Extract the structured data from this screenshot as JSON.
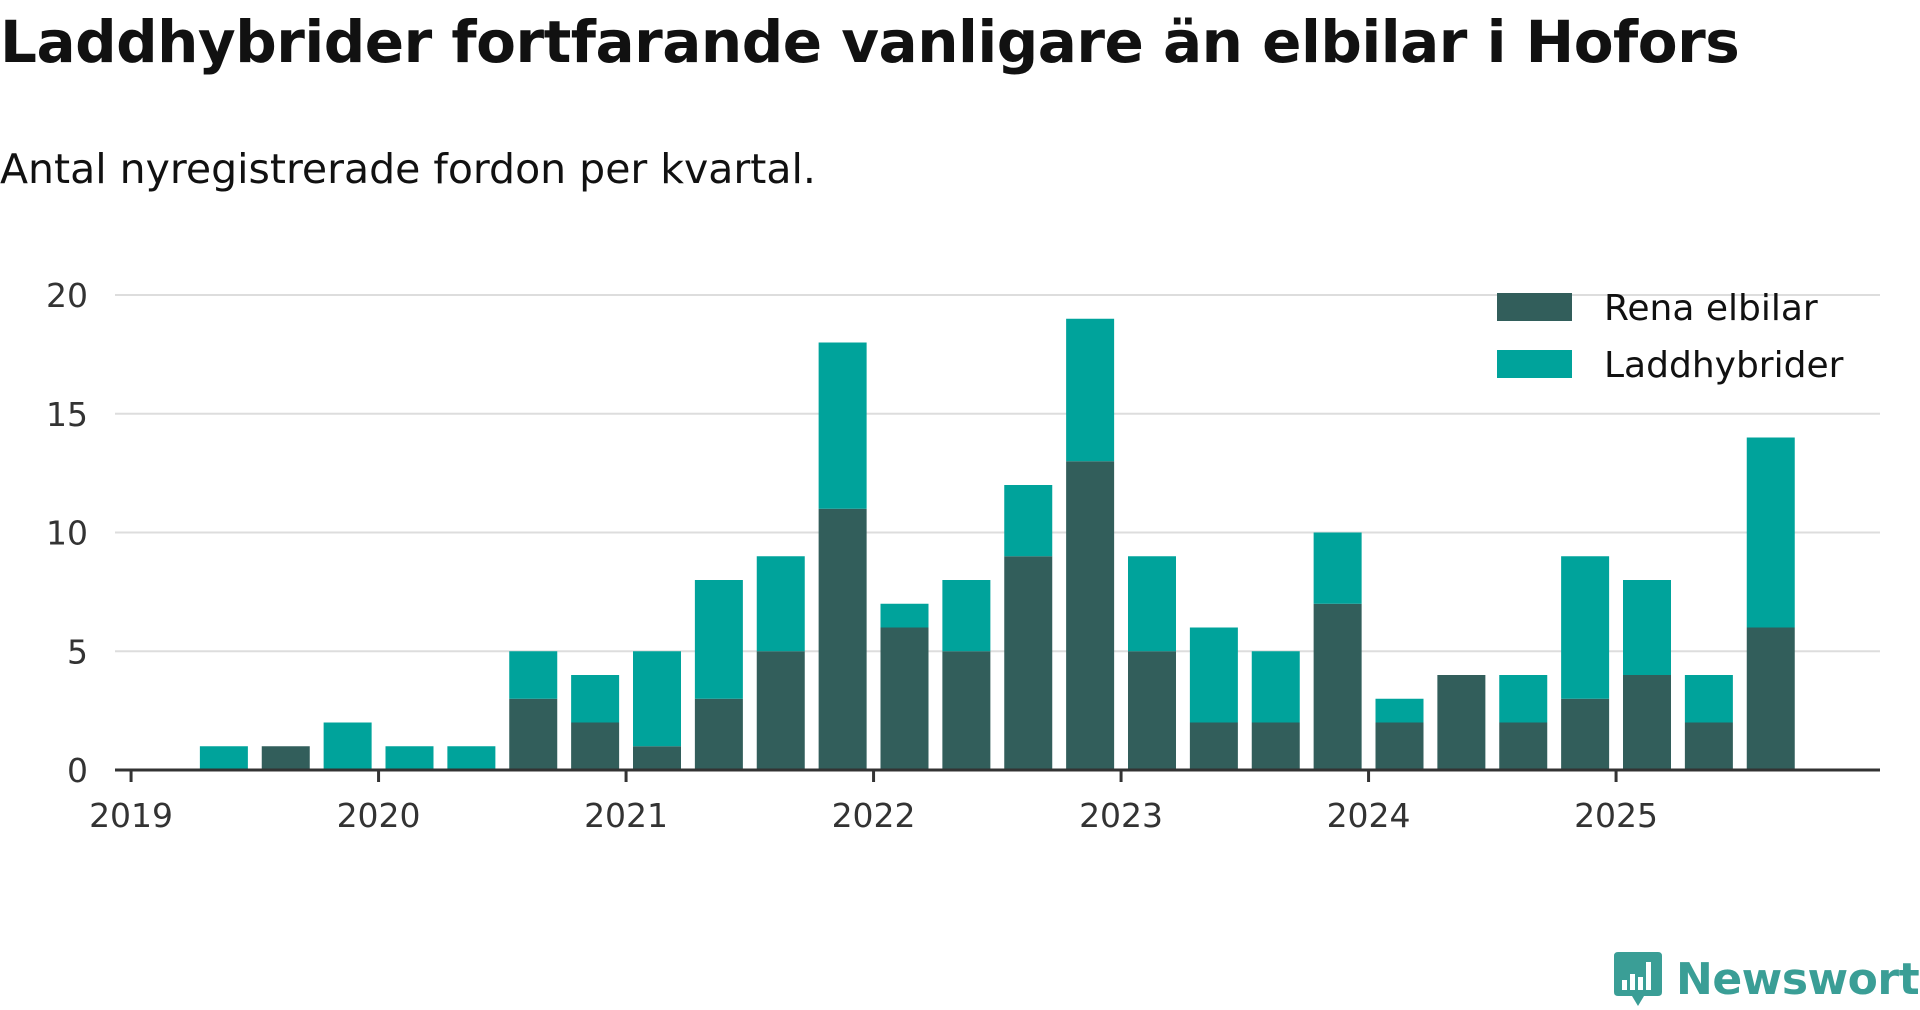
{
  "colors": {
    "bev": "#325e5b",
    "phev": "#00a39b",
    "grid": "#dddddd",
    "axis": "#333333",
    "brand": "#3a9e96"
  },
  "brand": {
    "name": "Newsworthy",
    "icon": "bar-chart-speech-bubble-icon"
  },
  "chart_data": {
    "type": "bar",
    "stacked": true,
    "title": "Laddhybrider fortfarande vanligare än elbilar i Hofors",
    "subtitle": "Antal nyregistrerade fordon per kvartal.",
    "xlabel": "",
    "ylabel": "",
    "ylim": [
      0,
      20
    ],
    "yticks": [
      0,
      5,
      10,
      15,
      20
    ],
    "x_ticks": [
      "2019",
      "2020",
      "2021",
      "2022",
      "2023",
      "2024",
      "2025"
    ],
    "categories": [
      "2019 Q1",
      "2019 Q2",
      "2019 Q3",
      "2019 Q4",
      "2020 Q1",
      "2020 Q2",
      "2020 Q3",
      "2020 Q4",
      "2021 Q1",
      "2021 Q2",
      "2021 Q3",
      "2021 Q4",
      "2022 Q1",
      "2022 Q2",
      "2022 Q3",
      "2022 Q4",
      "2023 Q1",
      "2023 Q2",
      "2023 Q3",
      "2023 Q4",
      "2024 Q1",
      "2024 Q2",
      "2024 Q3",
      "2024 Q4",
      "2025 Q1",
      "2025 Q2",
      "2025 Q3"
    ],
    "series": [
      {
        "name": "Rena elbilar",
        "color": "#325e5b",
        "values": [
          0,
          0,
          1,
          0,
          0,
          0,
          3,
          2,
          1,
          3,
          5,
          11,
          6,
          5,
          9,
          13,
          5,
          2,
          2,
          7,
          2,
          4,
          2,
          3,
          4,
          2,
          6
        ]
      },
      {
        "name": "Laddhybrider",
        "color": "#00a39b",
        "values": [
          0,
          1,
          0,
          2,
          1,
          1,
          2,
          2,
          4,
          5,
          4,
          7,
          1,
          3,
          3,
          6,
          4,
          4,
          3,
          3,
          1,
          0,
          2,
          6,
          4,
          2,
          8
        ]
      }
    ],
    "legend": {
      "position": "top-right"
    }
  }
}
